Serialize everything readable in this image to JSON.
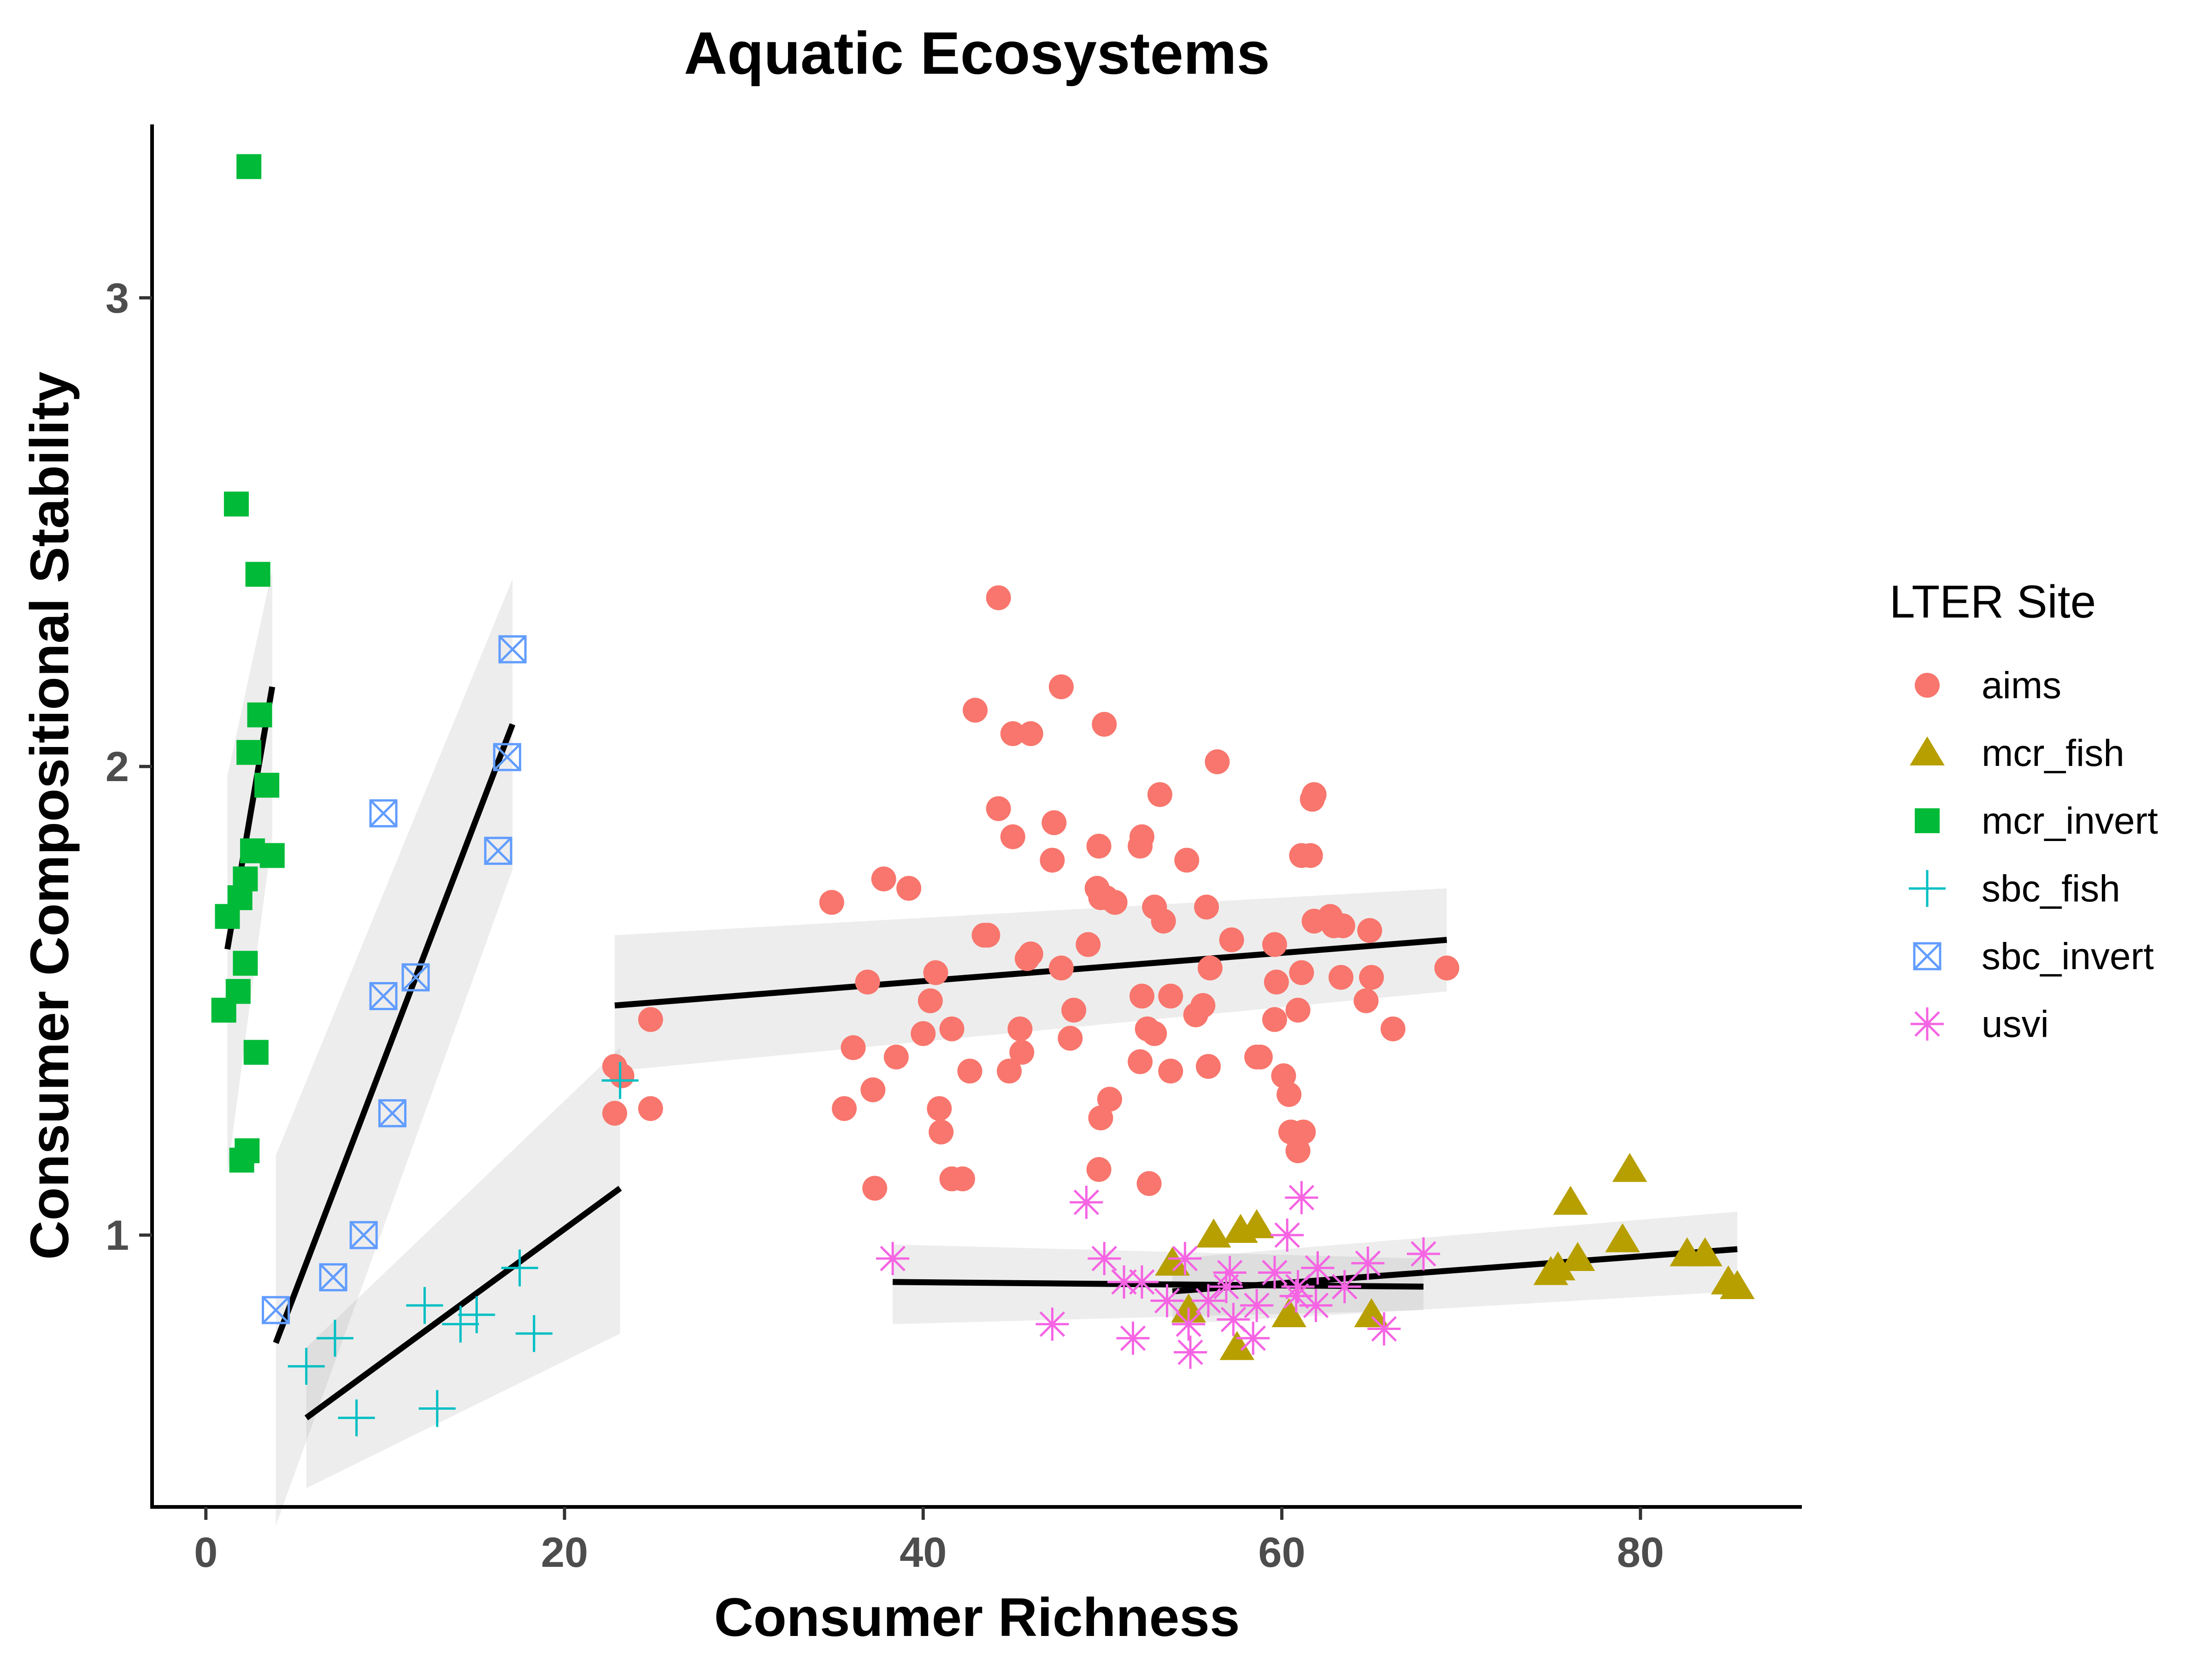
{
  "chart_data": {
    "type": "scatter",
    "title": "Aquatic Ecosystems",
    "xlabel": "Consumer Richness",
    "ylabel": "Consumer Compositional Stability",
    "xlim": [
      -3,
      89
    ],
    "ylim": [
      0.42,
      3.37
    ],
    "x_ticks": [
      0,
      20,
      40,
      60,
      80
    ],
    "y_ticks": [
      1,
      2,
      3
    ],
    "grid": false,
    "legend": {
      "title": "LTER Site",
      "placement": "right"
    },
    "series": [
      {
        "name": "aims",
        "shape": "circle",
        "color": "#F8766D",
        "points": [
          [
            44.2,
            2.36
          ],
          [
            47.7,
            2.17
          ],
          [
            42.9,
            2.12
          ],
          [
            45.0,
            2.07
          ],
          [
            46.0,
            2.07
          ],
          [
            50.1,
            2.09
          ],
          [
            56.4,
            2.01
          ],
          [
            44.2,
            1.91
          ],
          [
            47.3,
            1.88
          ],
          [
            45.0,
            1.85
          ],
          [
            52.1,
            1.83
          ],
          [
            52.2,
            1.85
          ],
          [
            49.8,
            1.83
          ],
          [
            53.2,
            1.94
          ],
          [
            61.7,
            1.93
          ],
          [
            61.8,
            1.94
          ],
          [
            47.2,
            1.8
          ],
          [
            54.7,
            1.8
          ],
          [
            61.1,
            1.81
          ],
          [
            61.6,
            1.81
          ],
          [
            37.8,
            1.76
          ],
          [
            39.2,
            1.74
          ],
          [
            34.9,
            1.71
          ],
          [
            49.7,
            1.74
          ],
          [
            49.9,
            1.72
          ],
          [
            50.7,
            1.71
          ],
          [
            50.2,
            1.72
          ],
          [
            52.9,
            1.7
          ],
          [
            55.8,
            1.7
          ],
          [
            53.4,
            1.67
          ],
          [
            61.8,
            1.67
          ],
          [
            62.7,
            1.68
          ],
          [
            63.4,
            1.66
          ],
          [
            64.9,
            1.65
          ],
          [
            62.9,
            1.66
          ],
          [
            43.4,
            1.64
          ],
          [
            43.6,
            1.64
          ],
          [
            46.0,
            1.6
          ],
          [
            45.8,
            1.59
          ],
          [
            49.2,
            1.62
          ],
          [
            57.2,
            1.63
          ],
          [
            59.6,
            1.62
          ],
          [
            40.7,
            1.56
          ],
          [
            36.9,
            1.54
          ],
          [
            47.7,
            1.57
          ],
          [
            56.0,
            1.57
          ],
          [
            61.1,
            1.56
          ],
          [
            63.3,
            1.55
          ],
          [
            65.0,
            1.55
          ],
          [
            52.2,
            1.51
          ],
          [
            53.8,
            1.51
          ],
          [
            55.6,
            1.49
          ],
          [
            59.7,
            1.54
          ],
          [
            40.4,
            1.5
          ],
          [
            64.7,
            1.5
          ],
          [
            69.2,
            1.57
          ],
          [
            24.8,
            1.46
          ],
          [
            41.6,
            1.44
          ],
          [
            45.4,
            1.44
          ],
          [
            48.4,
            1.48
          ],
          [
            52.5,
            1.44
          ],
          [
            52.9,
            1.43
          ],
          [
            55.2,
            1.47
          ],
          [
            59.6,
            1.46
          ],
          [
            60.9,
            1.48
          ],
          [
            66.2,
            1.44
          ],
          [
            40.0,
            1.43
          ],
          [
            48.2,
            1.42
          ],
          [
            36.1,
            1.4
          ],
          [
            38.5,
            1.38
          ],
          [
            45.5,
            1.39
          ],
          [
            52.1,
            1.37
          ],
          [
            55.9,
            1.36
          ],
          [
            58.6,
            1.38
          ],
          [
            58.8,
            1.38
          ],
          [
            60.1,
            1.34
          ],
          [
            60.4,
            1.3
          ],
          [
            22.8,
            1.36
          ],
          [
            23.2,
            1.34
          ],
          [
            42.6,
            1.35
          ],
          [
            44.8,
            1.35
          ],
          [
            53.8,
            1.35
          ],
          [
            37.2,
            1.31
          ],
          [
            50.4,
            1.29
          ],
          [
            22.8,
            1.26
          ],
          [
            24.8,
            1.27
          ],
          [
            35.6,
            1.27
          ],
          [
            40.9,
            1.27
          ],
          [
            49.9,
            1.25
          ],
          [
            41.0,
            1.22
          ],
          [
            60.5,
            1.22
          ],
          [
            61.2,
            1.22
          ],
          [
            60.9,
            1.18
          ],
          [
            49.8,
            1.14
          ],
          [
            41.6,
            1.12
          ],
          [
            42.2,
            1.12
          ],
          [
            52.6,
            1.11
          ],
          [
            37.3,
            1.1
          ]
        ]
      },
      {
        "name": "mcr_fish",
        "shape": "triangle",
        "color": "#B79F00",
        "points": [
          [
            79.4,
            1.14
          ],
          [
            76.1,
            1.07
          ],
          [
            56.2,
            1.0
          ],
          [
            57.7,
            1.01
          ],
          [
            58.6,
            1.02
          ],
          [
            79.0,
            0.99
          ],
          [
            76.5,
            0.95
          ],
          [
            82.6,
            0.96
          ],
          [
            83.6,
            0.96
          ],
          [
            53.9,
            0.94
          ],
          [
            75.4,
            0.93
          ],
          [
            75.0,
            0.92
          ],
          [
            84.9,
            0.9
          ],
          [
            85.4,
            0.89
          ],
          [
            60.4,
            0.83
          ],
          [
            65.0,
            0.83
          ],
          [
            54.8,
            0.84
          ],
          [
            57.5,
            0.76
          ]
        ]
      },
      {
        "name": "mcr_invert",
        "shape": "square",
        "color": "#00BA38",
        "points": [
          [
            2.4,
            3.28
          ],
          [
            1.7,
            2.56
          ],
          [
            2.9,
            2.41
          ],
          [
            3.0,
            2.11
          ],
          [
            2.4,
            2.03
          ],
          [
            3.4,
            1.96
          ],
          [
            2.6,
            1.82
          ],
          [
            3.7,
            1.81
          ],
          [
            2.2,
            1.76
          ],
          [
            1.9,
            1.72
          ],
          [
            1.2,
            1.68
          ],
          [
            2.2,
            1.58
          ],
          [
            1.8,
            1.52
          ],
          [
            1.0,
            1.48
          ],
          [
            2.8,
            1.39
          ],
          [
            2.3,
            1.18
          ],
          [
            2.0,
            1.16
          ]
        ]
      },
      {
        "name": "sbc_fish",
        "shape": "plus",
        "color": "#00BFC4",
        "points": [
          [
            23.1,
            1.33
          ],
          [
            17.5,
            0.93
          ],
          [
            12.2,
            0.85
          ],
          [
            15.1,
            0.83
          ],
          [
            14.2,
            0.81
          ],
          [
            18.3,
            0.79
          ],
          [
            7.2,
            0.78
          ],
          [
            5.6,
            0.72
          ],
          [
            8.4,
            0.61
          ],
          [
            12.9,
            0.63
          ]
        ]
      },
      {
        "name": "sbc_invert",
        "shape": "boxcross",
        "color": "#619CFF",
        "points": [
          [
            17.1,
            2.25
          ],
          [
            16.8,
            2.02
          ],
          [
            9.9,
            1.9
          ],
          [
            16.3,
            1.82
          ],
          [
            11.7,
            1.55
          ],
          [
            9.9,
            1.51
          ],
          [
            10.4,
            1.26
          ],
          [
            8.8,
            1.0
          ],
          [
            7.1,
            0.91
          ],
          [
            3.9,
            0.84
          ]
        ]
      },
      {
        "name": "usvi",
        "shape": "asterisk",
        "color": "#F564E3",
        "points": [
          [
            61.1,
            1.08
          ],
          [
            49.1,
            1.07
          ],
          [
            38.3,
            0.95
          ],
          [
            50.1,
            0.95
          ],
          [
            54.6,
            0.95
          ],
          [
            60.3,
            1.0
          ],
          [
            57.1,
            0.92
          ],
          [
            59.6,
            0.92
          ],
          [
            62.0,
            0.93
          ],
          [
            64.8,
            0.94
          ],
          [
            67.9,
            0.96
          ],
          [
            51.2,
            0.9
          ],
          [
            52.2,
            0.9
          ],
          [
            56.9,
            0.89
          ],
          [
            60.9,
            0.89
          ],
          [
            63.5,
            0.89
          ],
          [
            53.6,
            0.86
          ],
          [
            55.9,
            0.86
          ],
          [
            58.6,
            0.85
          ],
          [
            60.8,
            0.87
          ],
          [
            61.9,
            0.85
          ],
          [
            47.2,
            0.81
          ],
          [
            51.7,
            0.78
          ],
          [
            54.8,
            0.81
          ],
          [
            58.4,
            0.78
          ],
          [
            65.7,
            0.8
          ],
          [
            54.9,
            0.75
          ],
          [
            57.3,
            0.82
          ]
        ]
      }
    ],
    "fits": [
      {
        "series": "mcr_invert",
        "x": [
          1.2,
          3.7
        ],
        "y": [
          1.61,
          2.17
        ],
        "band_upper": [
          1.98,
          2.42
        ],
        "band_lower": [
          1.13,
          1.85
        ]
      },
      {
        "series": "sbc_invert",
        "x": [
          3.9,
          17.1
        ],
        "y": [
          0.77,
          2.09
        ],
        "band_upper": [
          1.17,
          2.4
        ],
        "band_lower": [
          0.38,
          1.78
        ]
      },
      {
        "series": "sbc_fish",
        "x": [
          5.6,
          23.1
        ],
        "y": [
          0.61,
          1.1
        ],
        "band_upper": [
          0.76,
          1.4
        ],
        "band_lower": [
          0.46,
          0.79
        ]
      },
      {
        "series": "aims",
        "x": [
          22.8,
          69.2
        ],
        "y": [
          1.49,
          1.63
        ],
        "band_upper": [
          1.64,
          1.74
        ],
        "band_lower": [
          1.35,
          1.52
        ]
      },
      {
        "series": "usvi",
        "x": [
          38.3,
          67.9
        ],
        "y": [
          0.9,
          0.89
        ],
        "band_upper": [
          0.98,
          0.95
        ],
        "band_lower": [
          0.81,
          0.84
        ]
      },
      {
        "series": "mcr_fish",
        "x": [
          53.9,
          85.4
        ],
        "y": [
          0.88,
          0.97
        ],
        "band_upper": [
          0.95,
          1.05
        ],
        "band_lower": [
          0.81,
          0.88
        ]
      }
    ]
  }
}
